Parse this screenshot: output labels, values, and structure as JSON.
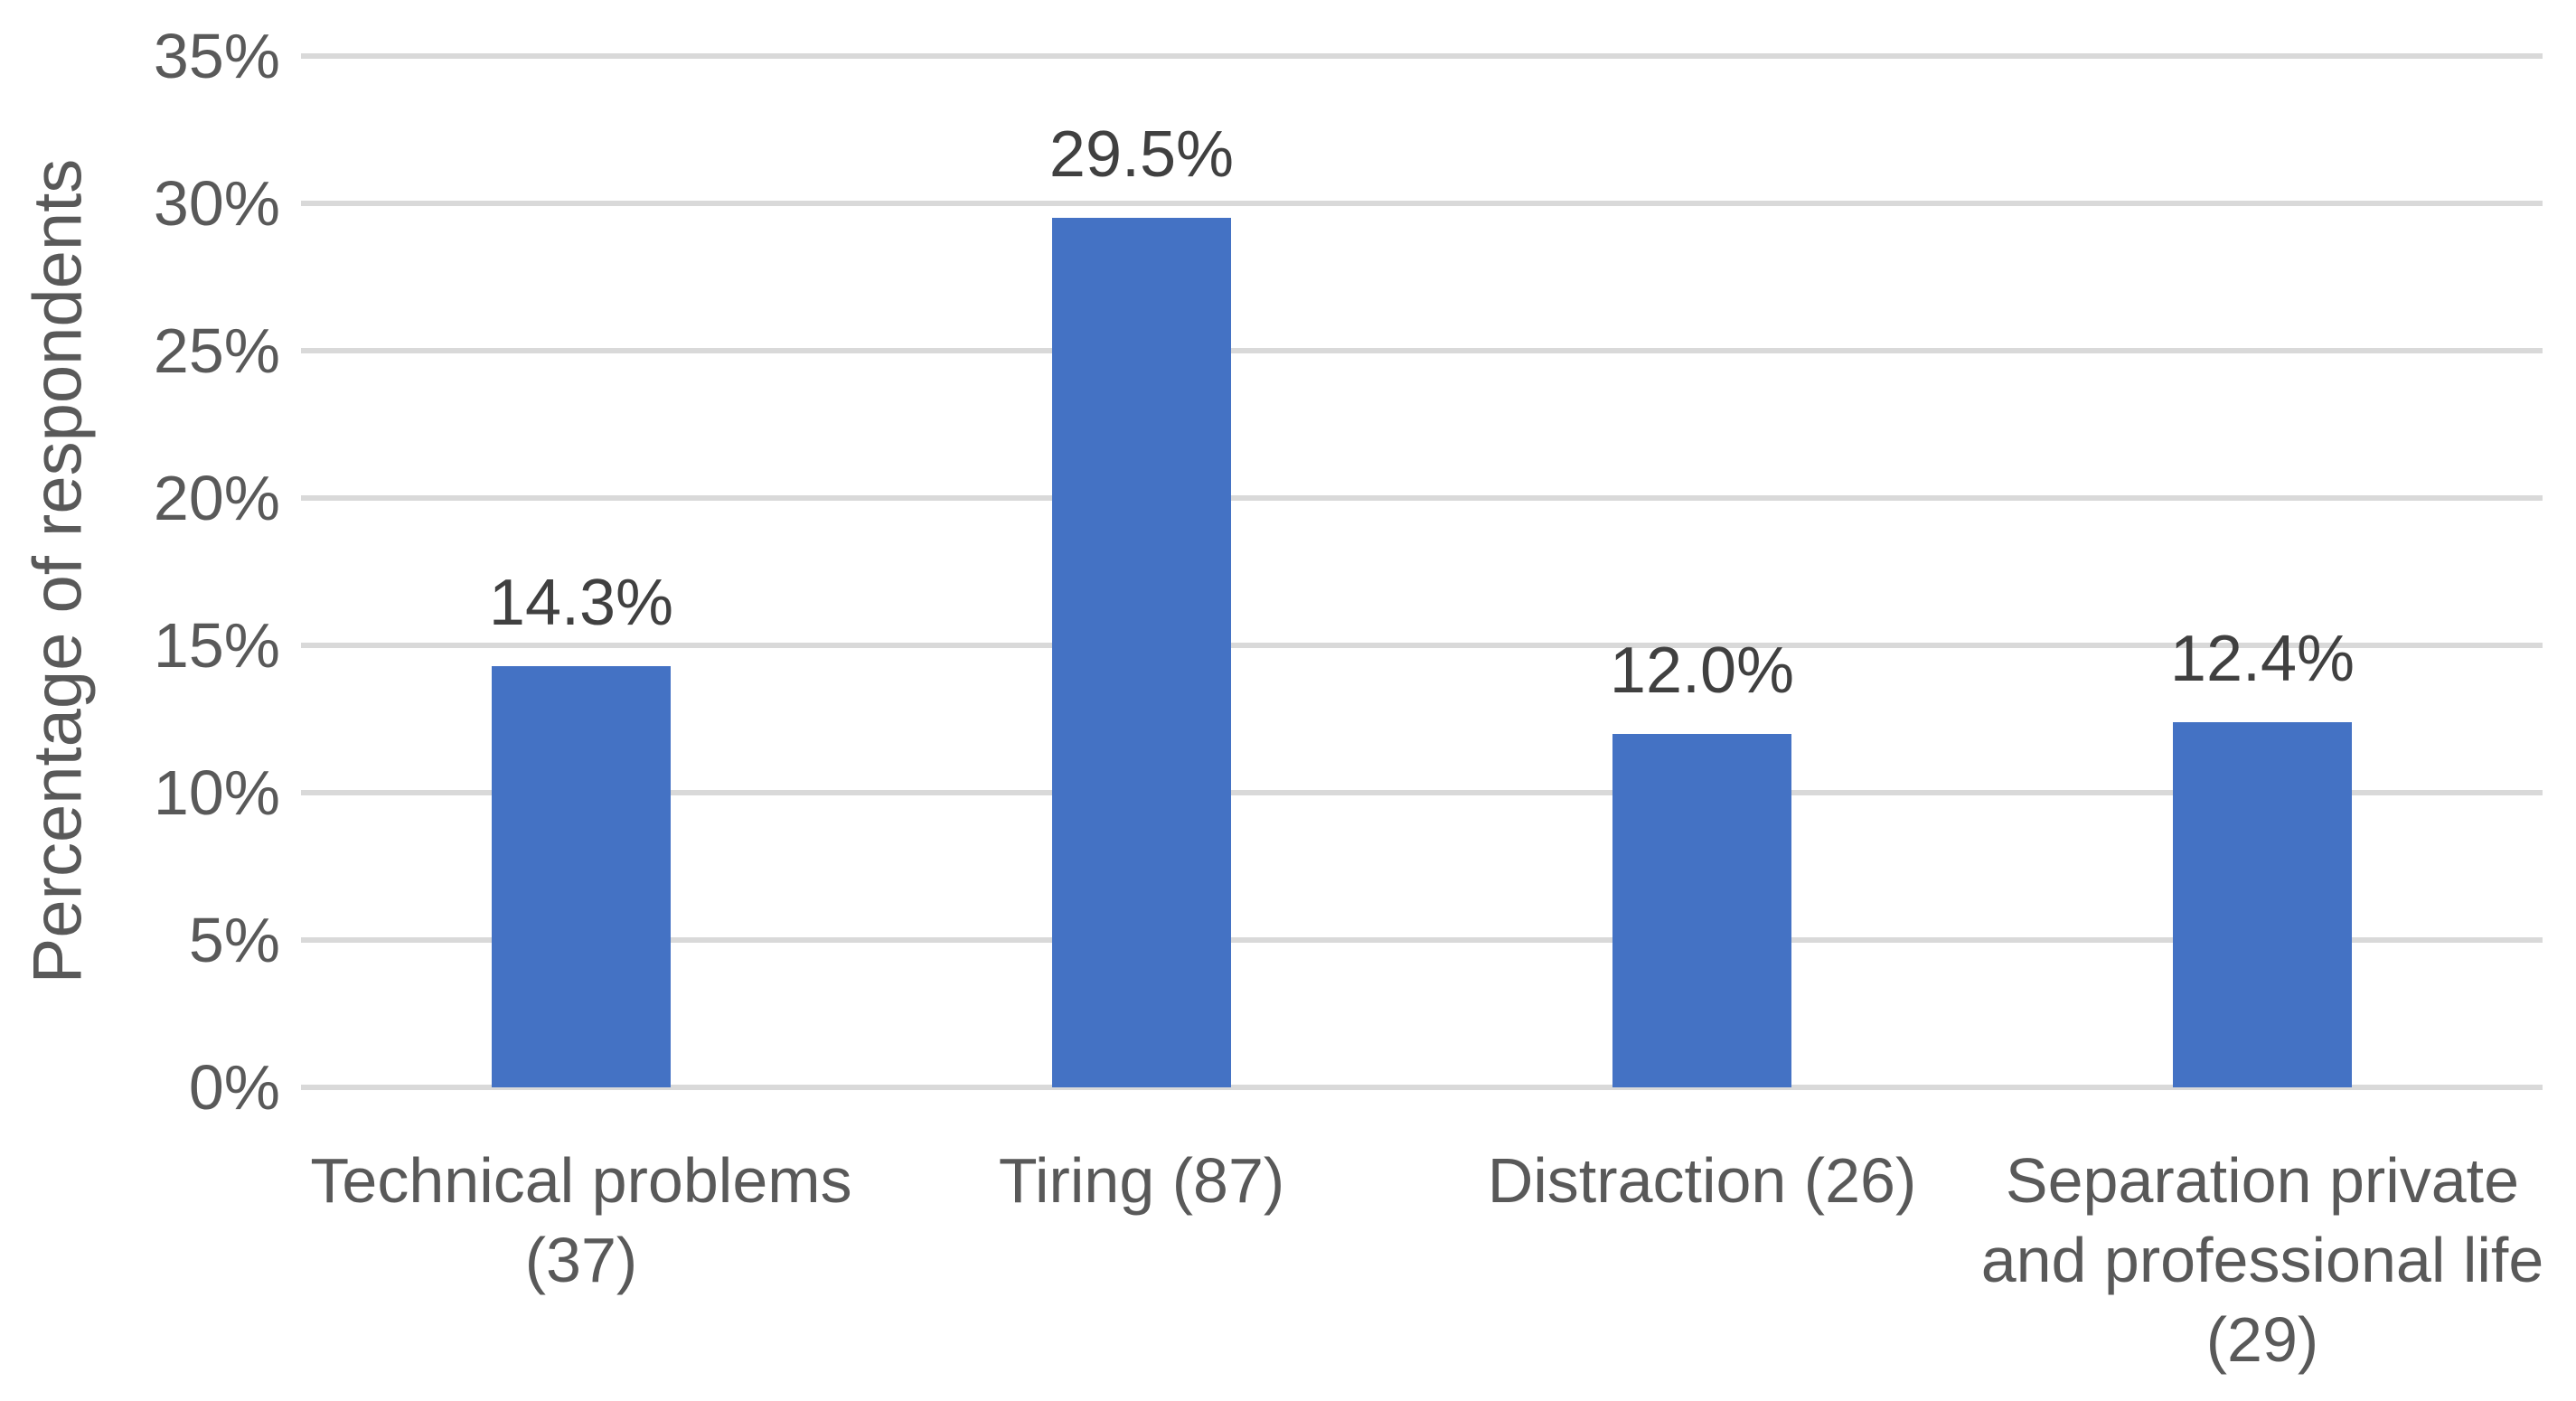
{
  "chart_data": {
    "type": "bar",
    "title": "",
    "ylabel": "Percentage of respondents",
    "xlabel": "",
    "ylim": [
      0,
      35
    ],
    "ytick_step": 5,
    "yticks": [
      "0%",
      "5%",
      "10%",
      "15%",
      "20%",
      "25%",
      "30%",
      "35%"
    ],
    "categories": [
      "Technical problems (37)",
      "Tiring (87)",
      "Distraction (26)",
      "Separation private and professional life (29)"
    ],
    "category_lines": [
      [
        "Technical problems",
        "(37)"
      ],
      [
        "Tiring (87)"
      ],
      [
        "Distraction (26)"
      ],
      [
        "Separation private",
        "and professional life",
        "(29)"
      ]
    ],
    "values": [
      14.3,
      29.5,
      12.0,
      12.4
    ],
    "data_labels": [
      "14.3%",
      "29.5%",
      "12.0%",
      "12.4%"
    ],
    "bar_color": "#4472C4",
    "gridline_color": "#D9D9D9",
    "axis_text_color": "#595959",
    "data_label_color": "#404040",
    "legend_position": "none",
    "grid": "horizontal"
  }
}
